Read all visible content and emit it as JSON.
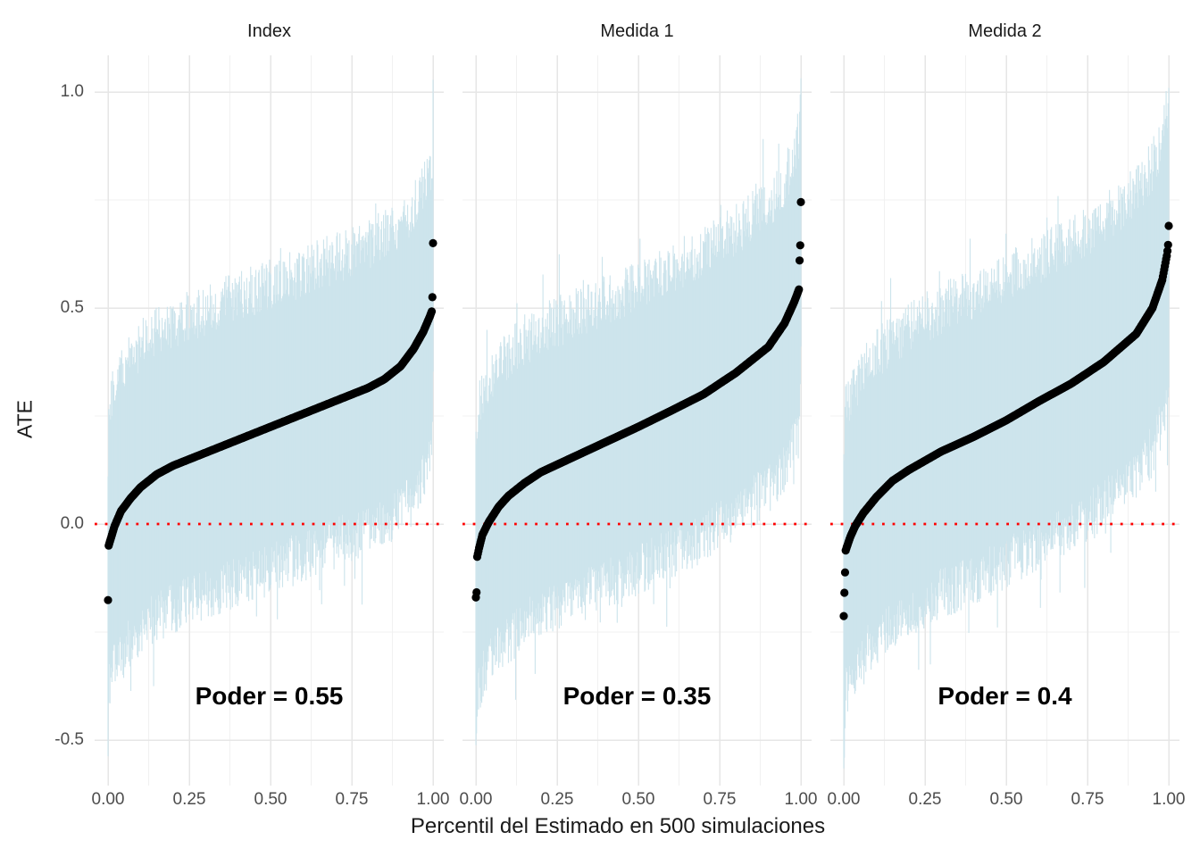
{
  "chart_data": {
    "type": "scatter",
    "subtype": "caterpillar-plot-with-confidence-intervals",
    "title": "",
    "xlabel": "Percentil del Estimado en 500 simulaciones",
    "ylabel": "ATE",
    "n_points_per_panel": 500,
    "reference_line_y": 0,
    "grid": "on",
    "x_ticks": {
      "values": [
        0,
        0.25,
        0.5,
        0.75,
        1.0
      ],
      "labels": [
        "0.00",
        "0.25",
        "0.50",
        "0.75",
        "1.00"
      ]
    },
    "x_minor_ticks": [
      0.125,
      0.375,
      0.625,
      0.875
    ],
    "y_ticks": {
      "values": [
        1.0,
        0.5,
        0.0,
        -0.5
      ],
      "labels": [
        "1.0",
        "0.5",
        "0.0",
        "-0.5"
      ]
    },
    "y_minor_ticks": [
      0.75,
      0.25,
      -0.25
    ],
    "xlim": [
      -0.04,
      1.03
    ],
    "ylim": [
      -0.6,
      1.08
    ],
    "panels": [
      {
        "label": "Index",
        "power": 0.55,
        "power_label": "Poder = 0.55",
        "quantile_curve": {
          "p": [
            0,
            0.01,
            0.02,
            0.04,
            0.07,
            0.1,
            0.15,
            0.2,
            0.25,
            0.3,
            0.4,
            0.5,
            0.6,
            0.7,
            0.8,
            0.85,
            0.9,
            0.94,
            0.97,
            0.99,
            1.0
          ],
          "ate": [
            -0.055,
            -0.03,
            -0.005,
            0.03,
            0.06,
            0.085,
            0.115,
            0.135,
            0.15,
            0.165,
            0.195,
            0.225,
            0.255,
            0.285,
            0.315,
            0.335,
            0.365,
            0.405,
            0.445,
            0.48,
            0.5
          ]
        },
        "outliers_low": [
          -0.176
        ],
        "outliers_high": [
          0.525,
          0.65
        ]
      },
      {
        "label": "Medida 1",
        "power": 0.35,
        "power_label": "Poder = 0.35",
        "quantile_curve": {
          "p": [
            0,
            0.01,
            0.02,
            0.04,
            0.07,
            0.1,
            0.15,
            0.2,
            0.3,
            0.4,
            0.5,
            0.6,
            0.7,
            0.8,
            0.9,
            0.95,
            0.98,
            1.0
          ],
          "ate": [
            -0.09,
            -0.055,
            -0.025,
            0.005,
            0.04,
            0.065,
            0.095,
            0.12,
            0.155,
            0.19,
            0.225,
            0.262,
            0.3,
            0.35,
            0.41,
            0.465,
            0.515,
            0.555
          ]
        },
        "outliers_low": [
          -0.17,
          -0.158
        ],
        "outliers_high": [
          0.61,
          0.645,
          0.745
        ]
      },
      {
        "label": "Medida 2",
        "power": 0.4,
        "power_label": "Poder = 0.4",
        "quantile_curve": {
          "p": [
            0,
            0.01,
            0.02,
            0.035,
            0.06,
            0.1,
            0.15,
            0.2,
            0.3,
            0.4,
            0.5,
            0.6,
            0.7,
            0.8,
            0.9,
            0.95,
            0.98,
            0.995,
            1.0
          ],
          "ate": [
            -0.075,
            -0.052,
            -0.03,
            -0.005,
            0.025,
            0.062,
            0.1,
            0.125,
            0.168,
            0.202,
            0.24,
            0.284,
            0.325,
            0.375,
            0.44,
            0.5,
            0.565,
            0.625,
            0.66
          ]
        },
        "outliers_low": [
          -0.213,
          -0.159,
          -0.112
        ],
        "outliers_high": [
          0.69
        ]
      }
    ],
    "ci_halfwidth_range": [
      0.27,
      0.39
    ],
    "colors": {
      "ci_band": "#cde4ec",
      "estimate_dot": "#000000",
      "reference_line": "#ff0000",
      "grid_major": "#e6e6e6",
      "grid_minor": "#f1f1f1",
      "axis_text": "#4d4d4d",
      "title_text": "#1a1a1a",
      "background": "#ffffff"
    }
  }
}
